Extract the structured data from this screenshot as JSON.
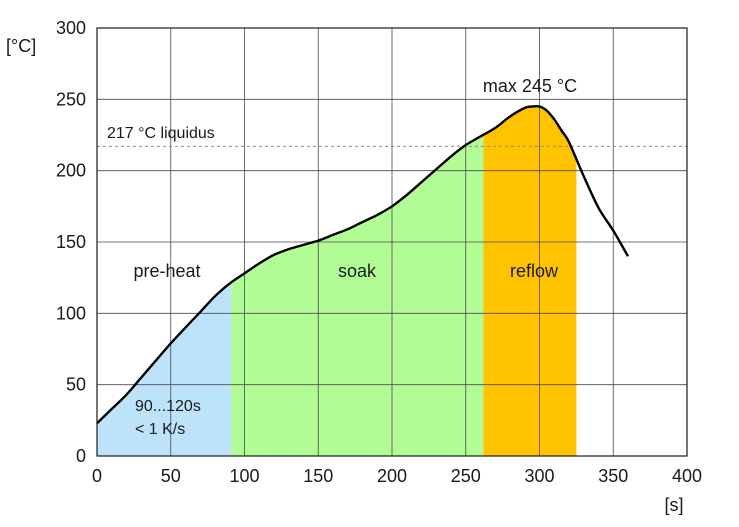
{
  "chart_data": {
    "type": "area",
    "xlabel": "[s]",
    "ylabel": "[°C]",
    "xlim": [
      0,
      400
    ],
    "ylim": [
      0,
      300
    ],
    "xticks": [
      "0",
      "50",
      "100",
      "150",
      "200",
      "250",
      "300",
      "350",
      "400"
    ],
    "yticks": [
      "0",
      "50",
      "100",
      "150",
      "200",
      "250",
      "300"
    ],
    "grid": true,
    "series": [
      {
        "x": [
          0,
          10,
          20,
          30,
          40,
          50,
          60,
          70,
          80,
          90,
          100,
          110,
          120,
          130,
          140,
          150,
          160,
          170,
          180,
          190,
          200,
          210,
          220,
          230,
          240,
          250,
          260,
          270,
          280,
          290,
          295,
          300,
          305,
          310,
          315,
          320,
          330,
          340,
          350,
          360
        ],
        "y": [
          23,
          33,
          43,
          55,
          67,
          79,
          90,
          101,
          112,
          121,
          128,
          135,
          141,
          145,
          148,
          151,
          155,
          159,
          164,
          169,
          175,
          183,
          192,
          201,
          210,
          218,
          224,
          230,
          238,
          244,
          245,
          245,
          242,
          236,
          228,
          220,
          196,
          174,
          158,
          140
        ]
      }
    ],
    "zones": [
      {
        "name": "pre-heat",
        "x_start": 0,
        "x_end": 91,
        "color": "#bde3fb"
      },
      {
        "name": "soak",
        "x_start": 91,
        "x_end": 262,
        "color": "#b1fc94"
      },
      {
        "name": "reflow",
        "x_start": 262,
        "x_end": 325,
        "color": "#ffc300"
      }
    ],
    "reference_line": {
      "value": 217,
      "label": "217 °C liquidus"
    },
    "annotations": {
      "peak": "max 245 °C",
      "preheat_line1": "90...120s",
      "preheat_line2": "< 1 K/s"
    }
  }
}
